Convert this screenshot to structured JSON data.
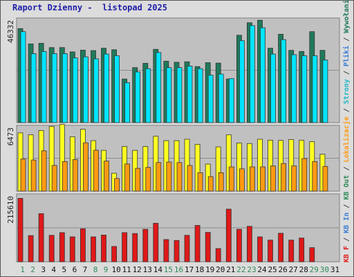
{
  "title": "Raport Dzienny -  listopad 2025",
  "colors": {
    "frame_bg": "#dcdcdc",
    "plot_bg": "#c0c0c0",
    "visits": "#1f7a5a",
    "pages": "#00e5ff",
    "files": "#ffff22",
    "hits": "#ff9a12",
    "kbf": "#e01818",
    "weekend": "#2e8b57",
    "weekday": "#111111"
  },
  "side_legend": [
    {
      "text": "KB F",
      "color": "#e01818"
    },
    {
      "text": " / ",
      "color": "#444444"
    },
    {
      "text": "KB In",
      "color": "#3a7bd5"
    },
    {
      "text": " / ",
      "color": "#444444"
    },
    {
      "text": "KB Out",
      "color": "#2e8b57"
    },
    {
      "text": " / ",
      "color": "#444444"
    },
    {
      "text": "Lokalizacje",
      "color": "#ff9a12"
    },
    {
      "text": " / ",
      "color": "#444444"
    },
    {
      "text": "Strony",
      "color": "#20b8c8"
    },
    {
      "text": " / ",
      "color": "#444444"
    },
    {
      "text": "Pliki",
      "color": "#3a7bd5"
    },
    {
      "text": " / ",
      "color": "#444444"
    },
    {
      "text": "Wywołania",
      "color": "#1f7a5a"
    }
  ],
  "chart_data": {
    "type": "bar",
    "title": "Raport Dzienny -  listopad 2025",
    "categories": [
      "1",
      "2",
      "3",
      "4",
      "5",
      "6",
      "7",
      "8",
      "9",
      "10",
      "11",
      "12",
      "13",
      "14",
      "15",
      "16",
      "17",
      "18",
      "19",
      "20",
      "21",
      "22",
      "23",
      "24",
      "25",
      "26",
      "27",
      "28",
      "29",
      "30",
      "31"
    ],
    "weekend_days": [
      "1",
      "2",
      "8",
      "9",
      "15",
      "16",
      "22",
      "23",
      "29",
      "30"
    ],
    "panels": [
      {
        "name": "hits-panel",
        "ymax": 46332,
        "ymax_label": "46332",
        "series": [
          {
            "key": "visits",
            "values": [
              43600,
              36500,
              36800,
              34800,
              34800,
              32800,
              33600,
              33400,
              34500,
              33800,
              20200,
              25500,
              27500,
              34000,
              28500,
              28000,
              28200,
              26000,
              27800,
              27600,
              20200,
              40500,
              46332,
              47500,
              34500,
              41000,
              33500,
              33000,
              42200,
              33500,
              0
            ]
          },
          {
            "key": "pages",
            "values": [
              42200,
              32000,
              33000,
              32000,
              32000,
              30000,
              30500,
              29600,
              31800,
              31000,
              18500,
              23500,
              25000,
              32500,
              25500,
              25500,
              26200,
              25000,
              22000,
              22500,
              20400,
              38000,
              45000,
              44000,
              31800,
              38500,
              31500,
              31000,
              31000,
              29000,
              0
            ]
          }
        ]
      },
      {
        "name": "files-panel",
        "ymax": 6473,
        "ymax_label": "6473",
        "series": [
          {
            "key": "files",
            "values": [
              6000,
              5800,
              6250,
              6680,
              6880,
              5600,
              6370,
              5200,
              4200,
              1850,
              4600,
              4200,
              4600,
              5650,
              5200,
              5200,
              5350,
              4820,
              2780,
              4560,
              5800,
              4950,
              4900,
              5350,
              5250,
              5220,
              5320,
              5250,
              5100,
              3800,
              0
            ]
          },
          {
            "key": "hits",
            "values": [
              3300,
              3200,
              4150,
              2650,
              3050,
              3250,
              4980,
              4220,
              3100,
              1300,
              2800,
              2350,
              2450,
              2950,
              3000,
              2950,
              2650,
              1900,
              1500,
              1900,
              2500,
              2300,
              2500,
              2500,
              2600,
              2850,
              2600,
              3350,
              3050,
              2550,
              0
            ]
          }
        ]
      },
      {
        "name": "kbf-panel",
        "ymax": 215610,
        "ymax_label": "215610",
        "series": [
          {
            "key": "kbf",
            "values": [
              211000,
              87000,
              160000,
              88000,
              97000,
              83000,
              110000,
              83000,
              89000,
              51000,
              97000,
              94000,
              108000,
              128000,
              74000,
              71000,
              88000,
              121000,
              98000,
              44000,
              175000,
              108000,
              118000,
              83000,
              72000,
              95000,
              72000,
              79000,
              47000,
              0,
              0
            ]
          }
        ]
      }
    ]
  }
}
